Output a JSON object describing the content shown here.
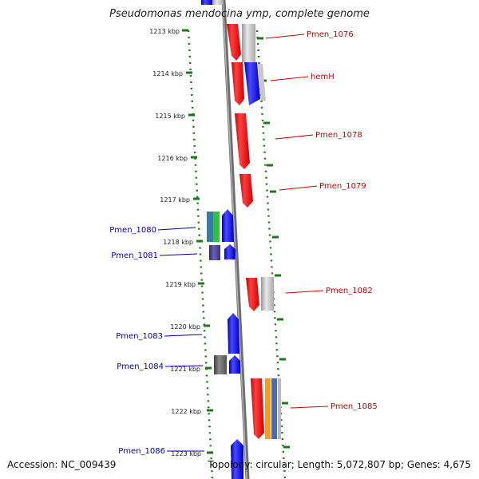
{
  "title": "Pseudomonas mendocina ymp, complete genome",
  "footer": {
    "accession": "Accession: NC_009439",
    "topology": "Topology: circular; Length: 5,072,807 bp; Genes: 4,675"
  },
  "ticks": [
    "1213 kbp",
    "1214 kbp",
    "1215 kbp",
    "1216 kbp",
    "1217 kbp",
    "1218 kbp",
    "1219 kbp",
    "1220 kbp",
    "1221 kbp",
    "1222 kbp",
    "1223 kbp"
  ],
  "colors": {
    "forward_gene": "#e02020",
    "reverse_gene": "#1a1ae0",
    "pseudo_gene": "#b8b8b8",
    "right_label": "#cc0000",
    "left_label": "#0000aa",
    "tick": "#1a7a1a",
    "axis": "#888888"
  },
  "genes_right": [
    {
      "label": "Pmen_1076"
    },
    {
      "label": "hemH"
    },
    {
      "label": "Pmen_1078"
    },
    {
      "label": "Pmen_1079"
    },
    {
      "label": "Pmen_1082"
    },
    {
      "label": "Pmen_1085"
    }
  ],
  "genes_left": [
    {
      "label": "Pmen_1080"
    },
    {
      "label": "Pmen_1081"
    },
    {
      "label": "Pmen_1083"
    },
    {
      "label": "Pmen_1084"
    },
    {
      "label": "Pmen_1086"
    }
  ]
}
